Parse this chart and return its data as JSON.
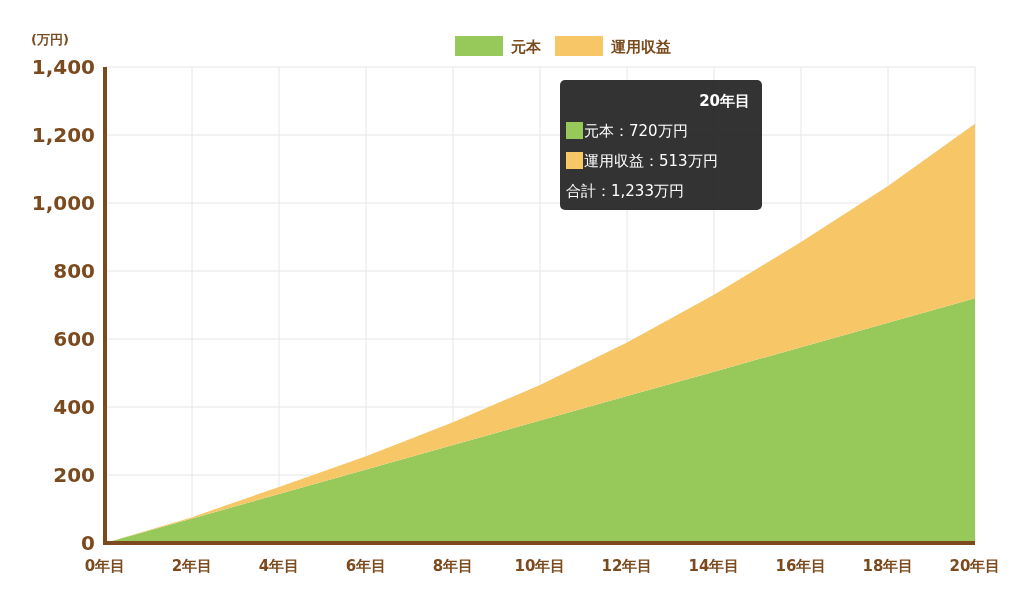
{
  "chart_data": {
    "type": "area",
    "stacked": true,
    "ylabel": "(万円)",
    "x": [
      0,
      2,
      4,
      6,
      8,
      10,
      12,
      14,
      16,
      18,
      20
    ],
    "series": [
      {
        "name": "元本",
        "color": "#97c95a",
        "values": [
          0,
          72,
          144,
          216,
          288,
          360,
          432,
          504,
          576,
          648,
          720
        ]
      },
      {
        "name": "運用収益",
        "color": "#f6c667",
        "values": [
          0,
          4,
          21,
          39,
          67,
          105,
          158,
          226,
          309,
          402,
          513
        ]
      }
    ],
    "xlim": [
      0,
      20
    ],
    "xticks": [
      {
        "value": 0,
        "label": "0年目"
      },
      {
        "value": 2,
        "label": "2年目"
      },
      {
        "value": 4,
        "label": "4年目"
      },
      {
        "value": 6,
        "label": "6年目"
      },
      {
        "value": 8,
        "label": "8年目"
      },
      {
        "value": 10,
        "label": "10年目"
      },
      {
        "value": 12,
        "label": "12年目"
      },
      {
        "value": 14,
        "label": "14年目"
      },
      {
        "value": 16,
        "label": "16年目"
      },
      {
        "value": 18,
        "label": "18年目"
      },
      {
        "value": 20,
        "label": "20年目"
      }
    ],
    "ylim": [
      0,
      1400
    ],
    "yticks": [
      {
        "value": 0,
        "label": "0"
      },
      {
        "value": 200,
        "label": "200"
      },
      {
        "value": 400,
        "label": "400"
      },
      {
        "value": 600,
        "label": "600"
      },
      {
        "value": 800,
        "label": "800"
      },
      {
        "value": 1000,
        "label": "1,000"
      },
      {
        "value": 1200,
        "label": "1,200"
      },
      {
        "value": 1400,
        "label": "1,400"
      }
    ],
    "grid": true,
    "legend": "top",
    "annotations": [
      "20年目",
      "元本：720万円",
      "運用収益：513万円",
      "合計：1,233万円"
    ]
  }
}
